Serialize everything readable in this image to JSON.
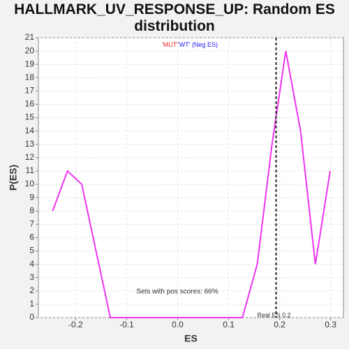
{
  "chart_data": {
    "type": "line",
    "title": "HALLMARK_UV_RESPONSE_UP: Random ES distribution",
    "xlabel": "ES",
    "ylabel": "P(ES)",
    "x": [
      -0.245,
      -0.216,
      -0.188,
      -0.16,
      -0.132,
      -0.103,
      -0.074,
      -0.045,
      -0.016,
      0.013,
      0.041,
      0.07,
      0.099,
      0.127,
      0.156,
      0.185,
      0.212,
      0.241,
      0.27,
      0.299
    ],
    "series": [
      {
        "color": "#ee33ee",
        "values": [
          8,
          11,
          10,
          5,
          0,
          0,
          0,
          0,
          0,
          0,
          0,
          0,
          0,
          0,
          4,
          13,
          20,
          14,
          4,
          11
        ]
      }
    ],
    "xlim": [
      -0.273,
      0.325
    ],
    "ylim": [
      0,
      21
    ],
    "xticks": [
      -0.2,
      -0.1,
      {
        "value": 0,
        "label": "0.0"
      },
      0.1,
      0.2,
      0.3
    ],
    "yticks": [
      0,
      1,
      2,
      3,
      4,
      5,
      6,
      7,
      8,
      9,
      10,
      11,
      12,
      13,
      14,
      15,
      16,
      17,
      18,
      19,
      20,
      21
    ],
    "grid": true,
    "legend_parts": [
      {
        "text": "'MUT'",
        "color": "#ee2222"
      },
      {
        "text": "'WT'",
        "color": "#2222ee"
      },
      {
        "text": "(Neg ES)",
        "color": "#2222ee"
      }
    ],
    "real_es": 0.193,
    "real_es_label": "Real ES 0.2",
    "annotation": "Sets with pos scores: 66%"
  }
}
